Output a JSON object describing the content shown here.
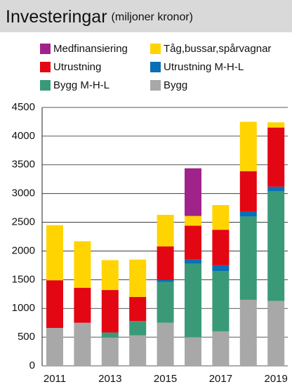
{
  "chart_data": {
    "type": "stacked_bar",
    "title": "Investeringar",
    "subtitle": "(miljoner kronor)",
    "categories": [
      "2011",
      null,
      "2013",
      null,
      "2015",
      null,
      "2017",
      null,
      "2019"
    ],
    "series": [
      {
        "name": "Bygg",
        "color": "#a8a8a8",
        "values": [
          660,
          750,
          490,
          530,
          750,
          500,
          600,
          1150,
          1130
        ]
      },
      {
        "name": "Bygg M-H-L",
        "color": "#3a9a78",
        "values": [
          null,
          null,
          90,
          250,
          710,
          1280,
          1050,
          1450,
          1910
        ]
      },
      {
        "name": "Utrustning M-H-L",
        "color": "#0b6fb5",
        "values": [
          null,
          null,
          null,
          null,
          40,
          70,
          100,
          90,
          80
        ]
      },
      {
        "name": "Utrustning",
        "color": "#e30613",
        "values": [
          830,
          610,
          740,
          420,
          580,
          590,
          620,
          700,
          1030
        ]
      },
      {
        "name": "Tåg,bussar,spårvagnar",
        "color": "#ffd400",
        "values": [
          960,
          810,
          520,
          650,
          550,
          170,
          430,
          860,
          90
        ]
      },
      {
        "name": "Medfinansiering",
        "color": "#a0238c",
        "values": [
          null,
          null,
          null,
          null,
          null,
          830,
          null,
          null,
          null
        ]
      }
    ],
    "ylim": [
      0,
      4500
    ],
    "yticks": [
      0,
      500,
      1000,
      1500,
      2000,
      2500,
      3000,
      3500,
      4000,
      4500
    ],
    "grid": true
  }
}
